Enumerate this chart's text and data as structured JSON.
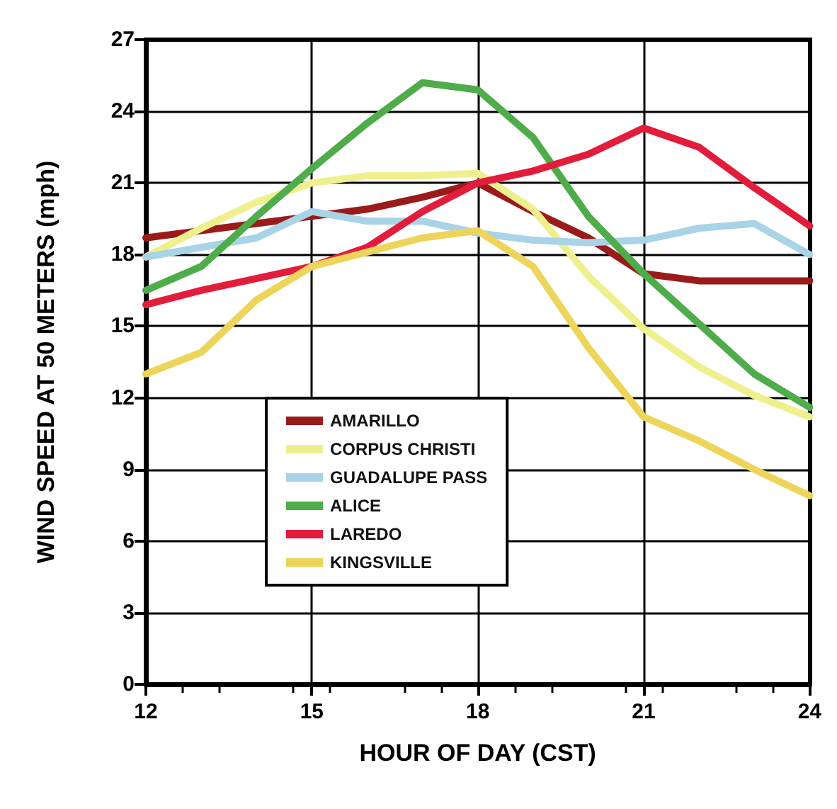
{
  "chart_data": {
    "type": "line",
    "xlabel": "HOUR OF DAY (CST)",
    "ylabel": "WIND SPEED AT 50 METERS (mph)",
    "x": [
      12,
      13,
      14,
      15,
      16,
      17,
      18,
      19,
      20,
      21,
      22,
      23,
      24
    ],
    "series": [
      {
        "name": "AMARILLO",
        "color": "#9b1b1b",
        "values": [
          18.7,
          19,
          19.3,
          19.6,
          19.9,
          20.4,
          21,
          19.8,
          18.7,
          17.2,
          16.9,
          16.9,
          16.9
        ]
      },
      {
        "name": "CORPUS CHRISTI",
        "color": "#eef08e",
        "values": [
          17.9,
          19.1,
          20.2,
          21,
          21.3,
          21.3,
          21.4,
          19.9,
          17.1,
          14.9,
          13.3,
          12.1,
          11.2
        ]
      },
      {
        "name": "GUADALUPE PASS",
        "color": "#a9d3e6",
        "values": [
          17.9,
          18.3,
          18.7,
          19.8,
          19.4,
          19.4,
          18.9,
          18.6,
          18.5,
          18.6,
          19.1,
          19.3,
          18
        ]
      },
      {
        "name": "ALICE",
        "color": "#4eac4a",
        "values": [
          16.5,
          17.5,
          19.6,
          21.6,
          23.5,
          25.2,
          24.9,
          22.9,
          19.6,
          17.2,
          15.1,
          13,
          11.6
        ]
      },
      {
        "name": "LAREDO",
        "color": "#e21d3c",
        "values": [
          15.9,
          16.5,
          17,
          17.5,
          18.3,
          19.8,
          21,
          21.5,
          22.2,
          23.3,
          22.5,
          20.8,
          19.2
        ]
      },
      {
        "name": "KINGSVILLE",
        "color": "#ecd55a",
        "values": [
          13,
          13.9,
          16.1,
          17.5,
          18.1,
          18.7,
          19,
          17.5,
          14.1,
          11.2,
          10.2,
          9,
          7.9
        ]
      }
    ],
    "xlim": [
      12,
      24
    ],
    "xticks": [
      12,
      15,
      18,
      21,
      24
    ],
    "ylim": [
      0,
      27
    ],
    "yticks": [
      0,
      3,
      6,
      9,
      12,
      15,
      18,
      21,
      24,
      27
    ],
    "grid": true,
    "legend": "bottom left",
    "marker": "none",
    "line_style": "solid"
  }
}
